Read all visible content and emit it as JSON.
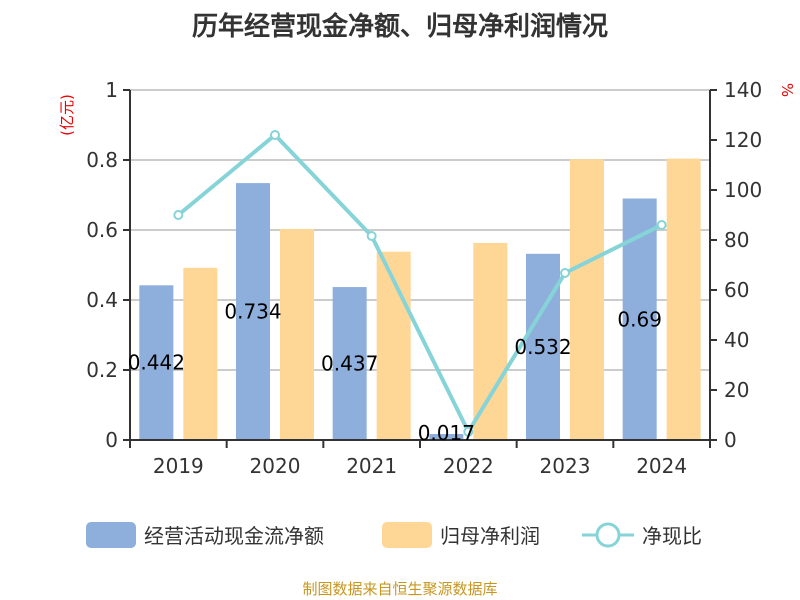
{
  "chart_data": {
    "type": "bar",
    "title": "历年经营现金净额、归母净利润情况",
    "categories": [
      "2019",
      "2020",
      "2021",
      "2022",
      "2023",
      "2024"
    ],
    "y_left": {
      "label": "(亿元)",
      "lim": [
        0,
        1
      ],
      "ticks": [
        "0",
        "0.2",
        "0.4",
        "0.6",
        "0.8",
        "1"
      ]
    },
    "y_right": {
      "label": "%",
      "lim": [
        0,
        140
      ],
      "ticks": [
        "0",
        "20",
        "40",
        "60",
        "80",
        "100",
        "120",
        "140"
      ]
    },
    "grid": true,
    "legend_position": "bottom",
    "series": [
      {
        "name": "经营活动现金流净额",
        "type": "bar",
        "axis": "left",
        "color": "#8eaedc",
        "values": [
          0.442,
          0.734,
          0.437,
          0.017,
          0.532,
          0.69
        ],
        "data_labels": [
          "0.442",
          "0.734",
          "0.437",
          "0.017",
          "0.532",
          "0.69"
        ]
      },
      {
        "name": "归母净利润",
        "type": "bar",
        "axis": "left",
        "color": "#fed797",
        "values": [
          0.492,
          0.603,
          0.538,
          0.563,
          0.802,
          0.804
        ]
      },
      {
        "name": "净现比",
        "type": "line",
        "axis": "right",
        "color": "#86d4d8",
        "values": [
          90,
          122,
          81.6,
          3.3,
          66.8,
          86
        ]
      }
    ]
  },
  "source": "制图数据来自恒生聚源数据库"
}
